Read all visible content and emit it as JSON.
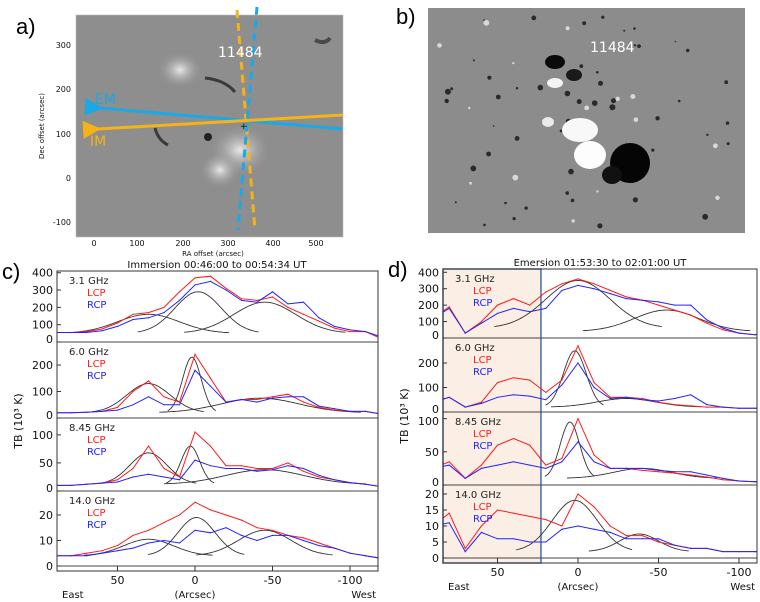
{
  "panels": {
    "a": {
      "label": "a)",
      "region": "11484",
      "xlabel": "RA offset (arcsec)",
      "ylabel": "Dec offset (arcsec)",
      "xticks": [
        "0",
        "100",
        "200",
        "300",
        "400",
        "500"
      ],
      "yticks": [
        "300",
        "200",
        "100",
        "0",
        "-100"
      ],
      "em_label": "EM",
      "im_label": "IM",
      "em_color": "#19a9e6",
      "im_color": "#f5b317"
    },
    "b": {
      "label": "b)",
      "region": "11484"
    }
  },
  "chart_data": [
    {
      "type": "line",
      "label": "c)",
      "title": "Immersion 00:46:00 to 00:54:34 UT",
      "xlabel": "(Arcsec)",
      "east": "East",
      "west": "West",
      "ylabel": "TB (10³ K)",
      "xlim": [
        90,
        -120
      ],
      "xticks": [
        50,
        0,
        -50,
        -100
      ],
      "x": [
        90,
        80,
        70,
        60,
        50,
        40,
        30,
        20,
        10,
        0,
        -10,
        -20,
        -30,
        -40,
        -50,
        -60,
        -70,
        -80,
        -90,
        -100,
        -110,
        -120
      ],
      "subplots": [
        {
          "freq": "3.1 GHz",
          "ylim": [
            0,
            410
          ],
          "yticks": [
            0,
            100,
            200,
            300,
            400
          ],
          "series": [
            {
              "name": "LCP",
              "color": "#ff1a1a",
              "values": [
                55,
                55,
                60,
                75,
                110,
                160,
                170,
                200,
                290,
                370,
                380,
                310,
                250,
                240,
                260,
                200,
                160,
                120,
                80,
                60,
                60,
                20
              ]
            },
            {
              "name": "RCP",
              "color": "#2323ff",
              "values": [
                55,
                55,
                55,
                65,
                90,
                130,
                140,
                170,
                240,
                330,
                350,
                300,
                240,
                230,
                290,
                220,
                230,
                140,
                90,
                70,
                60,
                30
              ]
            }
          ],
          "fits": [
            {
              "amp": 110,
              "center": 30,
              "sigma": 20,
              "base": 50
            },
            {
              "amp": 240,
              "center": -2,
              "sigma": 15,
              "base": 50
            },
            {
              "amp": 180,
              "center": -45,
              "sigma": 20,
              "base": 50
            }
          ]
        },
        {
          "freq": "6.0 GHz",
          "ylim": [
            0,
            287
          ],
          "yticks": [
            0,
            100,
            200
          ],
          "series": [
            {
              "name": "LCP",
              "color": "#ff1a1a",
              "values": [
                20,
                20,
                22,
                25,
                40,
                100,
                140,
                80,
                60,
                240,
                150,
                60,
                70,
                70,
                80,
                90,
                60,
                40,
                30,
                25,
                25,
                15
              ]
            },
            {
              "name": "RCP",
              "color": "#2323ff",
              "values": [
                20,
                20,
                22,
                25,
                30,
                50,
                80,
                50,
                50,
                180,
                120,
                60,
                70,
                60,
                75,
                80,
                80,
                45,
                35,
                25,
                25,
                15
              ]
            }
          ],
          "fits": [
            {
              "amp": 110,
              "center": 30,
              "sigma": 14,
              "base": 20
            },
            {
              "amp": 210,
              "center": 2,
              "sigma": 6,
              "base": 20
            },
            {
              "amp": 55,
              "center": -42,
              "sigma": 25,
              "base": 20
            }
          ]
        },
        {
          "freq": "8.45 GHz",
          "ylim": [
            0,
            130
          ],
          "yticks": [
            0,
            50,
            100
          ],
          "series": [
            {
              "name": "LCP",
              "color": "#ff1a1a",
              "values": [
                10,
                10,
                12,
                14,
                20,
                40,
                80,
                40,
                25,
                105,
                80,
                45,
                45,
                40,
                40,
                50,
                35,
                25,
                20,
                15,
                12,
                8
              ]
            },
            {
              "name": "RCP",
              "color": "#2323ff",
              "values": [
                10,
                10,
                12,
                14,
                16,
                25,
                30,
                25,
                20,
                55,
                45,
                40,
                40,
                35,
                38,
                45,
                40,
                28,
                20,
                15,
                12,
                8
              ]
            }
          ],
          "fits": [
            {
              "amp": 56,
              "center": 30,
              "sigma": 12,
              "base": 12
            },
            {
              "amp": 68,
              "center": 3,
              "sigma": 6,
              "base": 12
            },
            {
              "amp": 26,
              "center": -45,
              "sigma": 25,
              "base": 12
            }
          ]
        },
        {
          "freq": "14.0 GHz",
          "ylim": [
            0,
            29.4
          ],
          "yticks": [
            0,
            10,
            20
          ],
          "series": [
            {
              "name": "LCP",
              "color": "#ff1a1a",
              "values": [
                4,
                4,
                5,
                6,
                8,
                12,
                14,
                17,
                20,
                25,
                22,
                20,
                18,
                15,
                14,
                12,
                11,
                9,
                7,
                5,
                4,
                3
              ]
            },
            {
              "name": "RCP",
              "color": "#2323ff",
              "values": [
                4,
                4,
                4,
                5,
                6,
                7,
                9,
                10,
                9,
                14,
                13,
                15,
                12,
                10,
                12,
                12,
                10,
                8,
                7,
                5,
                4,
                3
              ]
            }
          ],
          "fits": [
            {
              "amp": 6.5,
              "center": 30,
              "sigma": 16,
              "base": 4
            },
            {
              "amp": 15,
              "center": -1,
              "sigma": 12,
              "base": 4
            },
            {
              "amp": 10,
              "center": -45,
              "sigma": 17,
              "base": 4
            }
          ]
        }
      ]
    },
    {
      "type": "line",
      "label": "d)",
      "title": "Emersion 01:53:30 to 02:01:00 UT",
      "xlabel": "(Arcsec)",
      "east": "East",
      "west": "West",
      "ylabel": "TB (10³ K)",
      "xlim": [
        85,
        -112
      ],
      "xticks": [
        50,
        0,
        -50,
        -100
      ],
      "highlight_range": [
        85,
        23
      ],
      "highlight_fill": "#fbeee4",
      "highlight_border": "#4a6aa8",
      "x": [
        90,
        80,
        70,
        60,
        50,
        40,
        30,
        20,
        10,
        0,
        -10,
        -20,
        -30,
        -40,
        -50,
        -60,
        -70,
        -80,
        -90,
        -100,
        -110,
        -120
      ],
      "subplots": [
        {
          "freq": "3.1 GHz",
          "ylim": [
            0,
            420
          ],
          "yticks": [
            0,
            100,
            200,
            300,
            400
          ],
          "series": [
            {
              "name": "LCP",
              "color": "#ff1a1a",
              "values": [
                120,
                190,
                30,
                100,
                200,
                240,
                200,
                280,
                330,
                360,
                330,
                290,
                250,
                230,
                200,
                170,
                140,
                90,
                50,
                30,
                20,
                40
              ]
            },
            {
              "name": "RCP",
              "color": "#2323ff",
              "values": [
                120,
                180,
                30,
                90,
                150,
                180,
                160,
                180,
                290,
                320,
                300,
                270,
                240,
                230,
                220,
                200,
                200,
                110,
                60,
                30,
                20,
                40
              ]
            }
          ],
          "fits": [
            {
              "amp": 290,
              "center": 0,
              "sigma": 20,
              "base": 60
            },
            {
              "amp": 130,
              "center": -55,
              "sigma": 20,
              "base": 40
            }
          ]
        },
        {
          "freq": "6.0 GHz",
          "ylim": [
            0,
            302
          ],
          "yticks": [
            0,
            100,
            200
          ],
          "series": [
            {
              "name": "LCP",
              "color": "#ff1a1a",
              "values": [
                40,
                60,
                20,
                40,
                120,
                140,
                130,
                80,
                130,
                270,
                120,
                60,
                60,
                55,
                40,
                30,
                25,
                20,
                20,
                15,
                15,
                15
              ]
            },
            {
              "name": "RCP",
              "color": "#2323ff",
              "values": [
                40,
                60,
                20,
                35,
                60,
                70,
                65,
                50,
                110,
                200,
                100,
                55,
                60,
                50,
                45,
                55,
                70,
                30,
                20,
                15,
                15,
                15
              ]
            }
          ],
          "fits": [
            {
              "amp": 230,
              "center": 2,
              "sigma": 7,
              "base": 20
            },
            {
              "amp": 35,
              "center": -30,
              "sigma": 18,
              "base": 20
            }
          ]
        },
        {
          "freq": "8.45 GHz",
          "ylim": [
            0,
            110
          ],
          "yticks": [
            0,
            50,
            100
          ],
          "series": [
            {
              "name": "LCP",
              "color": "#ff1a1a",
              "values": [
                25,
                35,
                10,
                30,
                60,
                70,
                60,
                30,
                40,
                100,
                45,
                25,
                25,
                22,
                20,
                18,
                15,
                12,
                8,
                6,
                5,
                5
              ]
            },
            {
              "name": "RCP",
              "color": "#2323ff",
              "values": [
                25,
                30,
                10,
                25,
                30,
                35,
                30,
                25,
                35,
                65,
                35,
                25,
                25,
                25,
                22,
                20,
                20,
                15,
                10,
                6,
                5,
                5
              ]
            }
          ],
          "fits": [
            {
              "amp": 85,
              "center": 5,
              "sigma": 6,
              "base": 10
            },
            {
              "amp": 15,
              "center": -40,
              "sigma": 18,
              "base": 10
            }
          ]
        },
        {
          "freq": "14.0 GHz",
          "ylim": [
            0,
            22.8
          ],
          "yticks": [
            0,
            5,
            10,
            15,
            20
          ],
          "series": [
            {
              "name": "LCP",
              "color": "#ff1a1a",
              "values": [
                10,
                14,
                3,
                10,
                15,
                14,
                13,
                12,
                10,
                20,
                16,
                10,
                7,
                7,
                5,
                4,
                3,
                3,
                2,
                2,
                2,
                2
              ]
            },
            {
              "name": "RCP",
              "color": "#2323ff",
              "values": [
                10,
                11,
                2,
                8,
                6,
                6,
                5,
                5,
                9,
                10,
                9,
                8,
                6,
                6,
                6,
                4,
                3,
                3,
                2,
                2,
                2,
                2
              ]
            }
          ],
          "fits": [
            {
              "amp": 16,
              "center": 2,
              "sigma": 14,
              "base": 2
            },
            {
              "amp": 5.5,
              "center": -38,
              "sigma": 12,
              "base": 2
            }
          ]
        }
      ]
    }
  ]
}
